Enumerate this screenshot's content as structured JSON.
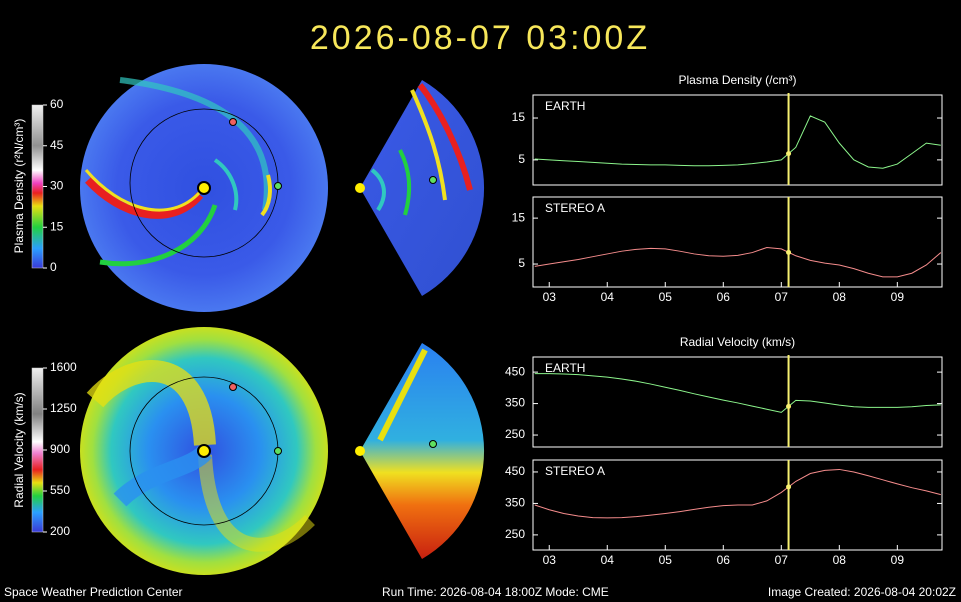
{
  "title": "2026-08-07  03:00Z",
  "footer": {
    "left": "Space Weather Prediction Center",
    "center": "Run Time: 2026-08-04 18:00Z  Mode: CME",
    "right": "Image Created: 2026-08-04 20:02Z"
  },
  "maps": [
    {
      "colorbar_label": "Plasma Density (r²N/cm³)",
      "colorbar_lim": [
        0,
        60
      ],
      "colorbar_ticks": [
        0,
        15,
        30,
        45,
        60
      ]
    },
    {
      "colorbar_label": "Radial Velocity (km/s)",
      "colorbar_lim": [
        200,
        1600
      ],
      "colorbar_ticks": [
        200,
        550,
        900,
        1250,
        1600
      ]
    }
  ],
  "chart_data": [
    {
      "type": "line",
      "title": "Plasma Density (/cm³)",
      "cursor_x": 7.125,
      "x": [
        2.75,
        3,
        3.25,
        3.5,
        3.75,
        4,
        4.25,
        4.5,
        4.75,
        5,
        5.25,
        5.5,
        5.75,
        6,
        6.25,
        6.5,
        6.75,
        7,
        7.25,
        7.5,
        7.75,
        8,
        8.25,
        8.5,
        8.75,
        9,
        9.25,
        9.5,
        9.75
      ],
      "xlim": [
        2.72,
        9.77
      ],
      "ylim": [
        -1,
        20.5
      ],
      "yticks": [
        5,
        15
      ],
      "series": [
        {
          "name": "EARTH",
          "color": "#8cf58c",
          "values": [
            5.2,
            5.0,
            4.8,
            4.6,
            4.4,
            4.2,
            4.0,
            3.9,
            3.8,
            3.8,
            3.7,
            3.6,
            3.6,
            3.7,
            3.8,
            4.1,
            4.5,
            5.0,
            8.0,
            15.5,
            14.0,
            9.0,
            5.0,
            3.3,
            3.0,
            4.0,
            6.5,
            9.0,
            8.5
          ]
        }
      ]
    },
    {
      "type": "line",
      "cursor_x": 7.125,
      "x": [
        2.75,
        3,
        3.25,
        3.5,
        3.75,
        4,
        4.25,
        4.5,
        4.75,
        5,
        5.25,
        5.5,
        5.75,
        6,
        6.25,
        6.5,
        6.75,
        7,
        7.25,
        7.5,
        7.75,
        8,
        8.25,
        8.5,
        8.75,
        9,
        9.25,
        9.5,
        9.75
      ],
      "xlim": [
        2.72,
        9.77
      ],
      "ylim": [
        0,
        19.6
      ],
      "yticks": [
        5,
        15
      ],
      "xticks": [
        {
          "value": 3,
          "label": "03"
        },
        {
          "value": 4,
          "label": "04"
        },
        {
          "value": 5,
          "label": "05"
        },
        {
          "value": 6,
          "label": "06"
        },
        {
          "value": 7,
          "label": "07"
        },
        {
          "value": 8,
          "label": "08"
        },
        {
          "value": 9,
          "label": "09"
        }
      ],
      "series": [
        {
          "name": "STEREO A",
          "color": "#f58c8c",
          "values": [
            4.5,
            5,
            5.5,
            6,
            6.6,
            7.2,
            7.8,
            8.2,
            8.4,
            8.3,
            7.8,
            7.2,
            6.8,
            6.7,
            6.9,
            7.5,
            8.6,
            8.3,
            6.8,
            5.8,
            5.2,
            4.8,
            4.0,
            3.0,
            2.2,
            2.2,
            3.0,
            4.8,
            7.5
          ]
        }
      ]
    },
    {
      "type": "line",
      "title": "Radial Velocity (km/s)",
      "cursor_x": 7.125,
      "x": [
        2.75,
        3,
        3.25,
        3.5,
        3.75,
        4,
        4.25,
        4.5,
        4.75,
        5,
        5.25,
        5.5,
        5.75,
        6,
        6.25,
        6.5,
        6.75,
        7,
        7.25,
        7.5,
        7.75,
        8,
        8.25,
        8.5,
        8.75,
        9,
        9.25,
        9.5,
        9.75
      ],
      "xlim": [
        2.72,
        9.77
      ],
      "ylim": [
        212,
        498
      ],
      "yticks": [
        250,
        350,
        450
      ],
      "series": [
        {
          "name": "EARTH",
          "color": "#8cf58c",
          "values": [
            445,
            445,
            444,
            442,
            438,
            434,
            428,
            421,
            412,
            402,
            392,
            381,
            371,
            361,
            352,
            342,
            332,
            322,
            360,
            358,
            352,
            345,
            340,
            338,
            338,
            338,
            340,
            344,
            346
          ]
        }
      ]
    },
    {
      "type": "line",
      "cursor_x": 7.125,
      "x": [
        2.75,
        3,
        3.25,
        3.5,
        3.75,
        4,
        4.25,
        4.5,
        4.75,
        5,
        5.25,
        5.5,
        5.75,
        6,
        6.25,
        6.5,
        6.75,
        7,
        7.25,
        7.5,
        7.75,
        8,
        8.25,
        8.5,
        8.75,
        9,
        9.25,
        9.5,
        9.75
      ],
      "xlim": [
        2.72,
        9.77
      ],
      "ylim": [
        202,
        488
      ],
      "yticks": [
        250,
        350,
        450
      ],
      "xticks": [
        {
          "value": 3,
          "label": "03"
        },
        {
          "value": 4,
          "label": "04"
        },
        {
          "value": 5,
          "label": "05"
        },
        {
          "value": 6,
          "label": "06"
        },
        {
          "value": 7,
          "label": "07"
        },
        {
          "value": 8,
          "label": "08"
        },
        {
          "value": 9,
          "label": "09"
        }
      ],
      "series": [
        {
          "name": "STEREO A",
          "color": "#f58c8c",
          "values": [
            345,
            330,
            318,
            310,
            305,
            304,
            305,
            308,
            313,
            318,
            324,
            331,
            338,
            343,
            345,
            345,
            358,
            385,
            420,
            445,
            455,
            458,
            450,
            438,
            425,
            412,
            400,
            390,
            378
          ]
        }
      ]
    }
  ]
}
